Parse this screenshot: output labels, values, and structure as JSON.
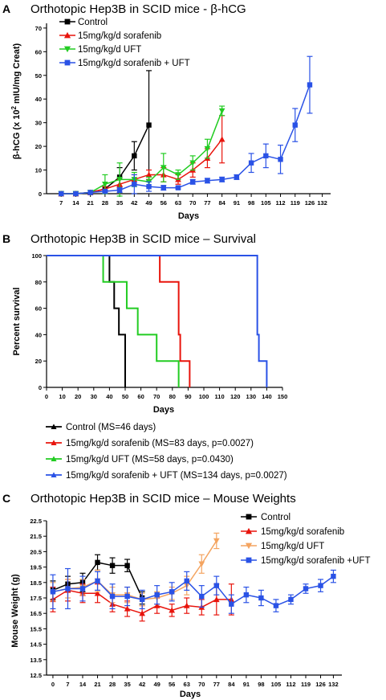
{
  "chart_data": [
    {
      "panel": "A",
      "type": "line",
      "title": "Orthotopic Hep3B in SCID mice - β-hCG",
      "ylabel_pre": "β-hCG (x 10",
      "ylabel_sup": "2",
      "ylabel_post": " mIU/mg Creat)",
      "xlabel": "Days",
      "x_ticks": [
        7,
        14,
        21,
        28,
        35,
        42,
        49,
        56,
        63,
        70,
        77,
        84,
        91,
        98,
        105,
        112,
        119,
        126,
        132
      ],
      "y_ticks": [
        0,
        10,
        20,
        30,
        40,
        50,
        60,
        70
      ],
      "xlim": [
        0,
        136
      ],
      "ylim": [
        0,
        72
      ],
      "legend_position": "top-left",
      "series": [
        {
          "name": "Control",
          "color": "#000000",
          "marker": "square",
          "x": [
            7,
            14,
            21,
            28,
            35,
            42,
            49
          ],
          "y": [
            0,
            0,
            0.5,
            2,
            7,
            16,
            29
          ],
          "err": [
            0,
            0,
            0,
            1,
            4,
            6,
            23
          ]
        },
        {
          "name": "15mg/kg/d sorafenib",
          "color": "#e8140c",
          "marker": "triangle",
          "x": [
            7,
            14,
            21,
            28,
            35,
            42,
            49,
            56,
            63,
            70,
            77,
            84
          ],
          "y": [
            0,
            0,
            0.5,
            2,
            4,
            6,
            8,
            8,
            6,
            10,
            15,
            23
          ],
          "err": [
            0,
            0,
            0,
            1,
            2,
            2,
            2,
            3,
            2,
            3,
            4,
            10
          ]
        },
        {
          "name": "15mg/kg/d UFT",
          "color": "#22cc22",
          "marker": "triangle-down",
          "x": [
            7,
            14,
            21,
            28,
            35,
            42,
            49,
            56,
            63,
            70,
            77,
            84
          ],
          "y": [
            0,
            0,
            0.5,
            4,
            6,
            6,
            5,
            11,
            8,
            13,
            19,
            35
          ],
          "err": [
            0,
            0,
            0,
            4,
            7,
            3,
            2,
            6,
            2,
            3,
            4,
            2
          ]
        },
        {
          "name": "15mg/kg/d sorafenib + UFT",
          "color": "#2a52e6",
          "marker": "square",
          "x": [
            7,
            14,
            21,
            28,
            35,
            42,
            49,
            56,
            63,
            70,
            77,
            84,
            91,
            98,
            105,
            112,
            119,
            126
          ],
          "y": [
            0,
            0,
            0.5,
            1,
            1.5,
            4,
            3,
            2.5,
            2.5,
            5,
            5.5,
            6,
            7,
            13,
            16,
            14.5,
            29,
            46
          ],
          "err": [
            0,
            0,
            0,
            0.5,
            1,
            4,
            2,
            1,
            0.5,
            1,
            1,
            1,
            1,
            4,
            5,
            6,
            7,
            12
          ]
        }
      ]
    },
    {
      "panel": "B",
      "type": "line",
      "title": "Orthotopic Hep3B in SCID mice – Survival",
      "ylabel": "Percent survival",
      "xlabel": "Days",
      "x_ticks": [
        0,
        10,
        20,
        30,
        40,
        50,
        60,
        70,
        80,
        90,
        100,
        110,
        120,
        130,
        140,
        150
      ],
      "y_ticks": [
        0,
        20,
        40,
        60,
        80,
        100
      ],
      "xlim": [
        0,
        150
      ],
      "ylim": [
        0,
        100
      ],
      "legend_position": "below",
      "series": [
        {
          "name": "Control (MS=46 days)",
          "color": "#000000",
          "steps": [
            [
              0,
              100
            ],
            [
              40,
              100
            ],
            [
              40,
              80
            ],
            [
              43,
              80
            ],
            [
              43,
              60
            ],
            [
              46,
              60
            ],
            [
              46,
              40
            ],
            [
              50,
              40
            ],
            [
              50,
              0
            ]
          ]
        },
        {
          "name": "15mg/kg/d sorafenib (MS=83 days, p=0.0027)",
          "color": "#e8140c",
          "steps": [
            [
              0,
              100
            ],
            [
              72,
              100
            ],
            [
              72,
              80
            ],
            [
              84,
              80
            ],
            [
              84,
              40
            ],
            [
              85,
              40
            ],
            [
              85,
              20
            ],
            [
              91,
              20
            ],
            [
              91,
              0
            ]
          ]
        },
        {
          "name": "15mg/kg/d UFT (MS=58 days, p=0.0430)",
          "color": "#22cc22",
          "steps": [
            [
              0,
              100
            ],
            [
              36,
              100
            ],
            [
              36,
              80
            ],
            [
              42,
              80
            ],
            [
              42,
              80
            ],
            [
              51,
              80
            ],
            [
              51,
              60
            ],
            [
              58,
              60
            ],
            [
              58,
              40
            ],
            [
              70,
              40
            ],
            [
              70,
              20
            ],
            [
              84,
              20
            ],
            [
              84,
              0
            ]
          ]
        },
        {
          "name": "15mg/kg/d sorafenib + UFT (MS=134 days, p=0.0027)",
          "color": "#2a52e6",
          "steps": [
            [
              0,
              100
            ],
            [
              134,
              100
            ],
            [
              134,
              40
            ],
            [
              135,
              40
            ],
            [
              135,
              20
            ],
            [
              140,
              20
            ],
            [
              140,
              0
            ]
          ]
        }
      ]
    },
    {
      "panel": "C",
      "type": "line",
      "title": "Orthotopic Hep3B in SCID mice – Mouse Weights",
      "ylabel": "Mouse Weight (g)",
      "xlabel": "Days",
      "x_ticks": [
        0,
        7,
        14,
        21,
        28,
        35,
        42,
        49,
        56,
        63,
        70,
        77,
        84,
        91,
        98,
        105,
        112,
        119,
        126,
        132
      ],
      "y_ticks": [
        12.5,
        13.5,
        14.5,
        15.5,
        16.5,
        17.5,
        18.5,
        19.5,
        20.5,
        21.5,
        22.5
      ],
      "xlim": [
        -3,
        136
      ],
      "ylim": [
        12.5,
        22.5
      ],
      "legend_position": "top-right",
      "series": [
        {
          "name": "Control",
          "color": "#000000",
          "marker": "square",
          "x": [
            0,
            7,
            14,
            21,
            28,
            35,
            42
          ],
          "y": [
            18.0,
            18.4,
            18.5,
            19.8,
            19.6,
            19.6,
            17.5
          ],
          "err": [
            0.6,
            0.5,
            0.6,
            0.5,
            0.5,
            0.4,
            0.4
          ]
        },
        {
          "name": "15mg/kg/d sorafenib",
          "color": "#e8140c",
          "marker": "triangle",
          "x": [
            0,
            7,
            14,
            21,
            28,
            35,
            42,
            49,
            56,
            63,
            70,
            77,
            84
          ],
          "y": [
            17.4,
            18.0,
            17.8,
            17.8,
            17.1,
            16.8,
            16.5,
            17.0,
            16.7,
            17.0,
            16.9,
            17.4,
            17.4
          ],
          "err": [
            0.8,
            0.7,
            0.6,
            0.6,
            0.5,
            0.5,
            0.5,
            0.5,
            0.4,
            0.5,
            0.5,
            1.0,
            1.0
          ]
        },
        {
          "name": "15mg/kg/d UFT",
          "color": "#f4a460",
          "marker": "triangle-down",
          "x": [
            0,
            7,
            14,
            21,
            28,
            35,
            42,
            49,
            56,
            63,
            70,
            77
          ],
          "y": [
            17.9,
            18.1,
            18.2,
            18.6,
            17.7,
            17.7,
            17.4,
            17.5,
            17.8,
            18.3,
            19.7,
            21.2
          ],
          "err": [
            0.6,
            0.6,
            0.5,
            0.7,
            0.5,
            0.5,
            0.4,
            0.4,
            0.4,
            0.6,
            0.6,
            0.5
          ]
        },
        {
          "name": "15mg/kg/d sorafenib +UFT",
          "color": "#2a52e6",
          "marker": "square",
          "x": [
            0,
            7,
            14,
            21,
            28,
            35,
            42,
            49,
            56,
            63,
            70,
            77,
            84,
            91,
            98,
            105,
            112,
            119,
            126,
            132
          ],
          "y": [
            17.9,
            18.1,
            18.1,
            18.6,
            17.6,
            17.6,
            17.4,
            17.7,
            17.9,
            18.6,
            17.6,
            18.3,
            17.1,
            17.7,
            17.5,
            17.0,
            17.4,
            18.1,
            18.3,
            18.9
          ],
          "err": [
            1.1,
            1.3,
            0.8,
            0.6,
            0.8,
            0.6,
            0.6,
            0.6,
            0.6,
            0.6,
            0.7,
            0.6,
            0.6,
            0.5,
            0.5,
            0.4,
            0.3,
            0.3,
            0.4,
            0.4
          ]
        }
      ]
    }
  ],
  "panel_labels": [
    "A",
    "B",
    "C"
  ]
}
